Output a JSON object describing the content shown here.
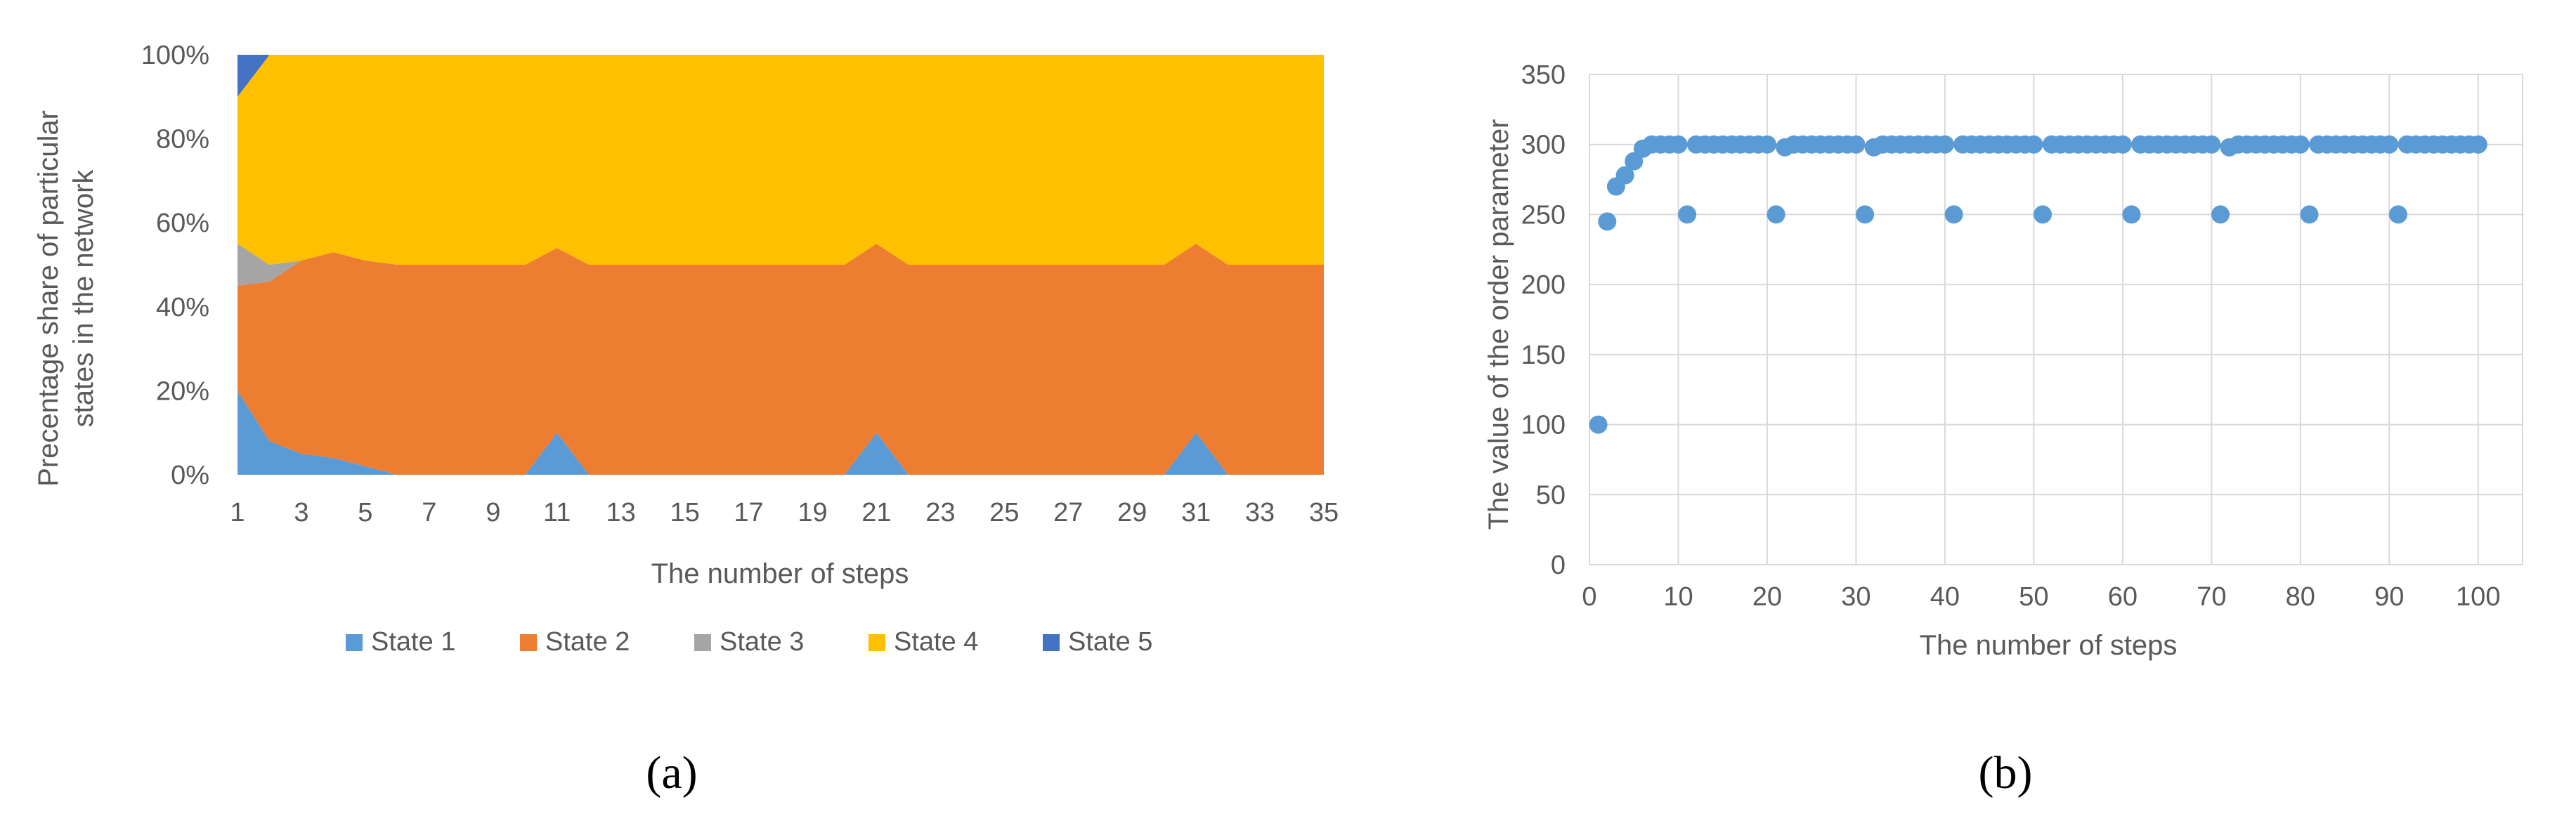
{
  "chart_data": [
    {
      "type": "area",
      "stacked": "percent",
      "caption": "(a)",
      "xlabel": "The number of steps",
      "ylabel_lines": [
        "Precentage share  of particular",
        "states in the network"
      ],
      "ylim": [
        0,
        100
      ],
      "yticks": [
        "0%",
        "20%",
        "40%",
        "60%",
        "80%",
        "100%"
      ],
      "x": [
        1,
        2,
        3,
        4,
        5,
        6,
        7,
        8,
        9,
        10,
        11,
        12,
        13,
        14,
        15,
        16,
        17,
        18,
        19,
        20,
        21,
        22,
        23,
        24,
        25,
        26,
        27,
        28,
        29,
        30,
        31,
        32,
        33,
        34,
        35
      ],
      "xticks": [
        1,
        3,
        5,
        7,
        9,
        11,
        13,
        15,
        17,
        19,
        21,
        23,
        25,
        27,
        29,
        31,
        33,
        35
      ],
      "legend_position": "bottom",
      "series": [
        {
          "name": "State 1",
          "color": "#5b9bd5",
          "values": [
            20,
            8,
            5,
            4,
            2,
            0,
            0,
            0,
            0,
            0,
            10,
            0,
            0,
            0,
            0,
            0,
            0,
            0,
            0,
            0,
            10,
            0,
            0,
            0,
            0,
            0,
            0,
            0,
            0,
            0,
            10,
            0,
            0,
            0,
            0
          ]
        },
        {
          "name": "State 2",
          "color": "#ed7d31",
          "values": [
            25,
            38,
            46,
            49,
            49,
            50,
            50,
            50,
            50,
            50,
            44,
            50,
            50,
            50,
            50,
            50,
            50,
            50,
            50,
            50,
            45,
            50,
            50,
            50,
            50,
            50,
            50,
            50,
            50,
            50,
            45,
            50,
            50,
            50,
            50
          ]
        },
        {
          "name": "State 3",
          "color": "#a5a5a5",
          "values": [
            10,
            4,
            0,
            0,
            0,
            0,
            0,
            0,
            0,
            0,
            0,
            0,
            0,
            0,
            0,
            0,
            0,
            0,
            0,
            0,
            0,
            0,
            0,
            0,
            0,
            0,
            0,
            0,
            0,
            0,
            0,
            0,
            0,
            0,
            0
          ]
        },
        {
          "name": "State 4",
          "color": "#ffc000",
          "values": [
            35,
            50,
            49,
            47,
            49,
            50,
            50,
            50,
            50,
            50,
            46,
            50,
            50,
            50,
            50,
            50,
            50,
            50,
            50,
            50,
            45,
            50,
            50,
            50,
            50,
            50,
            50,
            50,
            50,
            50,
            45,
            50,
            50,
            50,
            50
          ]
        },
        {
          "name": "State 5",
          "color": "#4472c4",
          "values": [
            10,
            0,
            0,
            0,
            0,
            0,
            0,
            0,
            0,
            0,
            0,
            0,
            0,
            0,
            0,
            0,
            0,
            0,
            0,
            0,
            0,
            0,
            0,
            0,
            0,
            0,
            0,
            0,
            0,
            0,
            0,
            0,
            0,
            0,
            0
          ]
        }
      ]
    },
    {
      "type": "scatter",
      "caption": "(b)",
      "xlabel": "The number of steps",
      "ylabel": "The value of the order parameter",
      "xlim": [
        0,
        105
      ],
      "ylim": [
        0,
        350
      ],
      "xticks": [
        0,
        10,
        20,
        30,
        40,
        50,
        60,
        70,
        80,
        90,
        100
      ],
      "yticks": [
        0,
        50,
        100,
        150,
        200,
        250,
        300,
        350
      ],
      "grid": true,
      "marker_color": "#5b9bd5",
      "points": [
        [
          1,
          100
        ],
        [
          2,
          245
        ],
        [
          3,
          270
        ],
        [
          4,
          278
        ],
        [
          5,
          288
        ],
        [
          6,
          297
        ],
        [
          7,
          300
        ],
        [
          8,
          300
        ],
        [
          9,
          300
        ],
        [
          10,
          300
        ],
        [
          11,
          250
        ],
        [
          12,
          300
        ],
        [
          13,
          300
        ],
        [
          14,
          300
        ],
        [
          15,
          300
        ],
        [
          16,
          300
        ],
        [
          17,
          300
        ],
        [
          18,
          300
        ],
        [
          19,
          300
        ],
        [
          20,
          300
        ],
        [
          21,
          250
        ],
        [
          22,
          298
        ],
        [
          23,
          300
        ],
        [
          24,
          300
        ],
        [
          25,
          300
        ],
        [
          26,
          300
        ],
        [
          27,
          300
        ],
        [
          28,
          300
        ],
        [
          29,
          300
        ],
        [
          30,
          300
        ],
        [
          31,
          250
        ],
        [
          32,
          298
        ],
        [
          33,
          300
        ],
        [
          34,
          300
        ],
        [
          35,
          300
        ],
        [
          36,
          300
        ],
        [
          37,
          300
        ],
        [
          38,
          300
        ],
        [
          39,
          300
        ],
        [
          40,
          300
        ],
        [
          41,
          250
        ],
        [
          42,
          300
        ],
        [
          43,
          300
        ],
        [
          44,
          300
        ],
        [
          45,
          300
        ],
        [
          46,
          300
        ],
        [
          47,
          300
        ],
        [
          48,
          300
        ],
        [
          49,
          300
        ],
        [
          50,
          300
        ],
        [
          51,
          250
        ],
        [
          52,
          300
        ],
        [
          53,
          300
        ],
        [
          54,
          300
        ],
        [
          55,
          300
        ],
        [
          56,
          300
        ],
        [
          57,
          300
        ],
        [
          58,
          300
        ],
        [
          59,
          300
        ],
        [
          60,
          300
        ],
        [
          61,
          250
        ],
        [
          62,
          300
        ],
        [
          63,
          300
        ],
        [
          64,
          300
        ],
        [
          65,
          300
        ],
        [
          66,
          300
        ],
        [
          67,
          300
        ],
        [
          68,
          300
        ],
        [
          69,
          300
        ],
        [
          70,
          300
        ],
        [
          71,
          250
        ],
        [
          72,
          298
        ],
        [
          73,
          300
        ],
        [
          74,
          300
        ],
        [
          75,
          300
        ],
        [
          76,
          300
        ],
        [
          77,
          300
        ],
        [
          78,
          300
        ],
        [
          79,
          300
        ],
        [
          80,
          300
        ],
        [
          81,
          250
        ],
        [
          82,
          300
        ],
        [
          83,
          300
        ],
        [
          84,
          300
        ],
        [
          85,
          300
        ],
        [
          86,
          300
        ],
        [
          87,
          300
        ],
        [
          88,
          300
        ],
        [
          89,
          300
        ],
        [
          90,
          300
        ],
        [
          91,
          250
        ],
        [
          92,
          300
        ],
        [
          93,
          300
        ],
        [
          94,
          300
        ],
        [
          95,
          300
        ],
        [
          96,
          300
        ],
        [
          97,
          300
        ],
        [
          98,
          300
        ],
        [
          99,
          300
        ],
        [
          100,
          300
        ]
      ]
    }
  ]
}
